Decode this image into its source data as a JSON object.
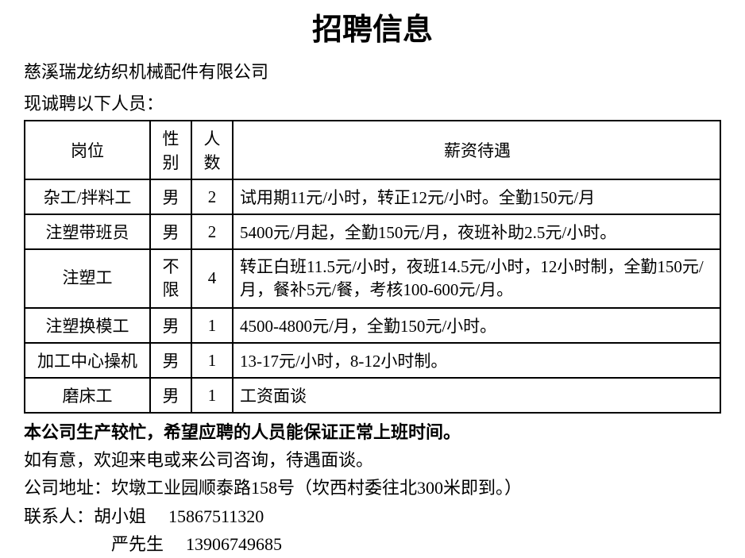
{
  "title": "招聘信息",
  "company_name": "慈溪瑞龙纺织机械配件有限公司",
  "intro_text": "现诚聘以下人员：",
  "table": {
    "headers": {
      "position": "岗位",
      "gender": "性别",
      "count": "人数",
      "salary": "薪资待遇"
    },
    "rows": [
      {
        "position": "杂工/拌料工",
        "gender": "男",
        "count": "2",
        "salary": "试用期11元/小时，转正12元/小时。全勤150元/月"
      },
      {
        "position": "注塑带班员",
        "gender": "男",
        "count": "2",
        "salary": "5400元/月起，全勤150元/月，夜班补助2.5元/小时。"
      },
      {
        "position": "注塑工",
        "gender": "不限",
        "count": "4",
        "salary": "转正白班11.5元/小时，夜班14.5元/小时，12小时制，全勤150元/月，餐补5元/餐，考核100-600元/月。"
      },
      {
        "position": "注塑换模工",
        "gender": "男",
        "count": "1",
        "salary": "4500-4800元/月，全勤150元/小时。"
      },
      {
        "position": "加工中心操机",
        "gender": "男",
        "count": "1",
        "salary": "13-17元/小时，8-12小时制。"
      },
      {
        "position": "磨床工",
        "gender": "男",
        "count": "1",
        "salary": "工资面谈"
      }
    ]
  },
  "footer": {
    "note_bold": "本公司生产较忙，希望应聘的人员能保证正常上班时间。",
    "line1": "如有意，欢迎来电或来公司咨询，待遇面谈。",
    "address": "公司地址：坎墩工业园顺泰路158号（坎西村委往北300米即到。）",
    "contact1_label": "联系人：胡小姐",
    "contact1_phone": "15867511320",
    "contact2_label": "严先生",
    "contact2_phone": "13906749685"
  },
  "styling": {
    "background_color": "#ffffff",
    "text_color": "#000000",
    "border_color": "#000000",
    "title_fontsize": 38,
    "body_fontsize": 22,
    "table_fontsize": 21,
    "border_width": 2,
    "font_family": "SimSun",
    "title_font_family": "SimHei"
  }
}
